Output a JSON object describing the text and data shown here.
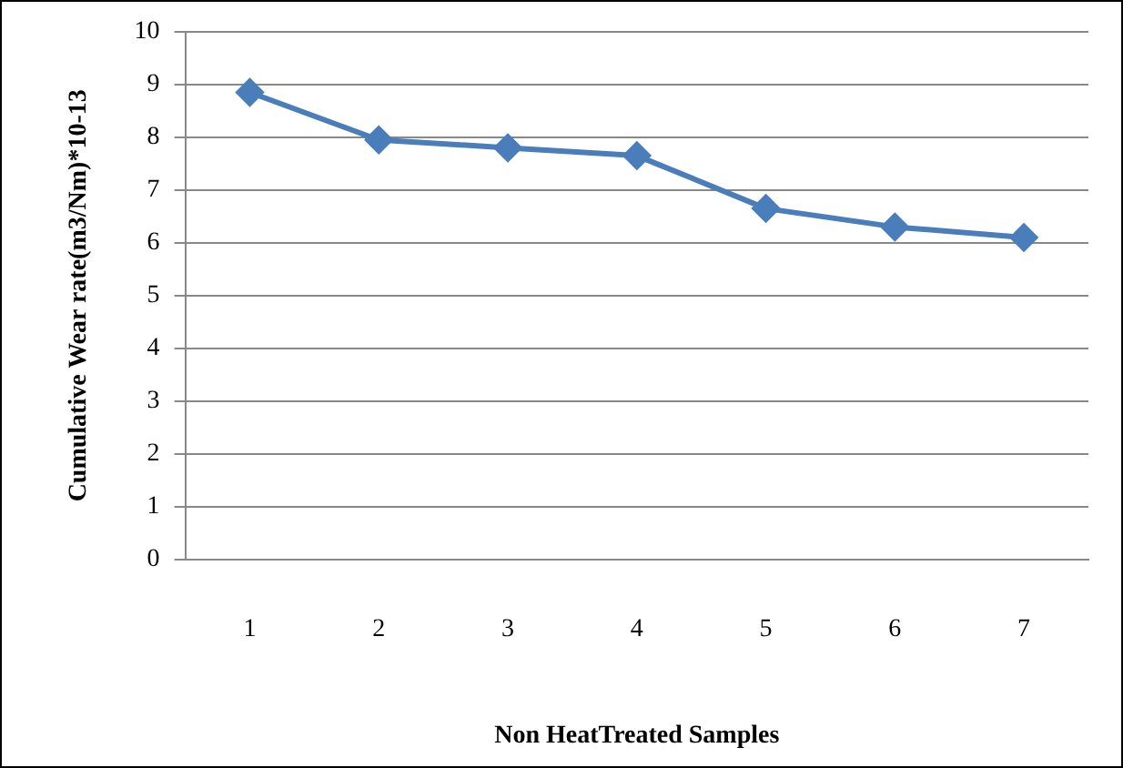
{
  "chart_data": {
    "type": "line",
    "xlabel": "Non HeatTreated Samples",
    "ylabel": "Cumulative Wear rate(m3/Nm)*10-13",
    "categories": [
      "1",
      "2",
      "3",
      "4",
      "5",
      "6",
      "7"
    ],
    "series": [
      {
        "color": "#4a7ebb",
        "values": [
          8.85,
          7.95,
          7.8,
          7.65,
          6.65,
          6.3,
          6.1
        ]
      }
    ],
    "ylim": [
      0,
      10
    ],
    "yticks": [
      0,
      1,
      2,
      3,
      4,
      5,
      6,
      7,
      8,
      9,
      10
    ],
    "grid": "y",
    "legend": false,
    "marker": "diamond",
    "line_style": "solid"
  }
}
